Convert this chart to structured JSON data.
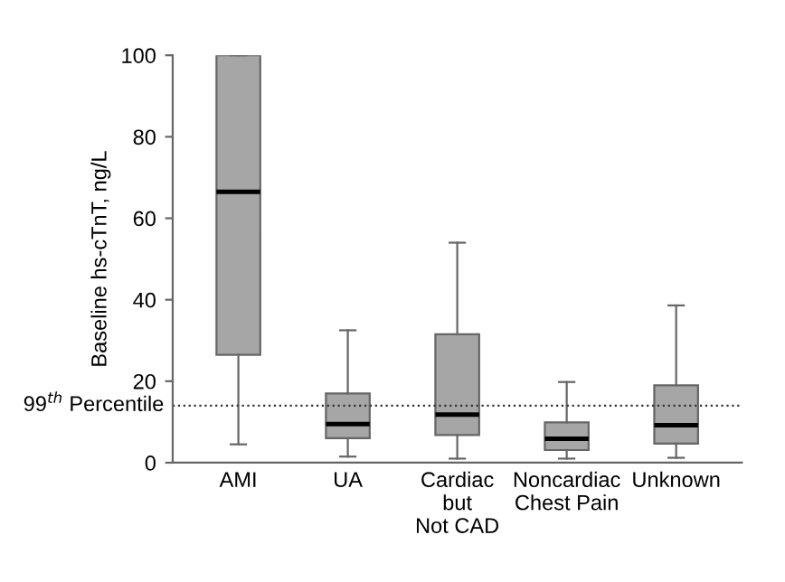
{
  "chart_data": {
    "type": "box",
    "ylabel": "Baseline hs-cTnT, ng/L",
    "categories": [
      "AMI",
      "UA",
      "Cardiac\nbut\nNot CAD",
      "Noncardiac\nChest Pain",
      "Unknown"
    ],
    "boxes": [
      {
        "low": 4.5,
        "q1": 26.5,
        "median": 66.5,
        "q3": 100,
        "high": 100
      },
      {
        "low": 1.5,
        "q1": 6,
        "median": 9.5,
        "q3": 17,
        "high": 32.5
      },
      {
        "low": 1,
        "q1": 6.8,
        "median": 11.8,
        "q3": 31.5,
        "high": 54
      },
      {
        "low": 1,
        "q1": 3.1,
        "median": 5.9,
        "q3": 9.9,
        "high": 19.8
      },
      {
        "low": 1.2,
        "q1": 4.7,
        "median": 9.2,
        "q3": 19,
        "high": 38.6
      }
    ],
    "color": "#a6a6a6",
    "ylim": [
      0,
      100
    ],
    "yticks": [
      0,
      20,
      40,
      60,
      80,
      100
    ],
    "ref_lines": [
      {
        "axis": "y",
        "value": 14,
        "label": "99$^{th}$ Percentile",
        "line_style": "dotted",
        "color": "#333333"
      }
    ],
    "grid": false
  }
}
